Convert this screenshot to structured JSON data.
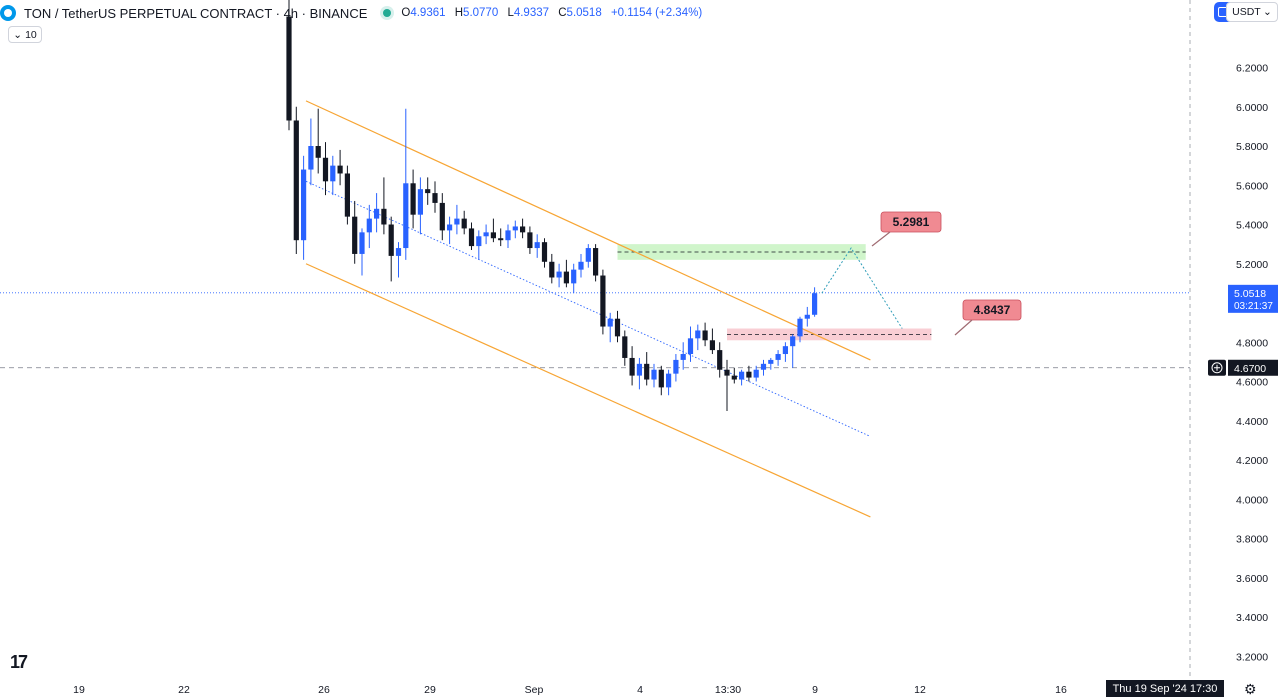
{
  "header": {
    "symbol_title": "TON / TetherUS PERPETUAL CONTRACT · 4h · BINANCE",
    "open_label": "O",
    "open": "4.9361",
    "high_label": "H",
    "high": "5.0770",
    "low_label": "L",
    "low": "4.9337",
    "close_label": "C",
    "close": "5.0518",
    "change": "+0.1154 (+2.34%)",
    "volume_toggle": "10"
  },
  "currency_button": "USDT",
  "time_badge": "Thu 19 Sep '24   17:30",
  "colors": {
    "up": "#2962ff",
    "down": "#131722",
    "channel": "#f7a534",
    "midline": "#2962ff",
    "target_box": "#c8f3c2",
    "stop_box": "#f8c6cc",
    "label_bg": "#f08a92",
    "brand_tab": "#2962ff"
  },
  "icons": {
    "volume_chevron": "chevron-down-icon",
    "crosshair": "crosshair-plus-icon",
    "settings": "gear-icon",
    "logo": "tradingview-logo-icon"
  },
  "chart_data": {
    "type": "candlestick",
    "price_ticks": [
      "6.2000",
      "6.0000",
      "5.8000",
      "5.6000",
      "5.4000",
      "5.2000",
      "4.8000",
      "4.6000",
      "4.4000",
      "4.2000",
      "4.0000",
      "3.8000",
      "3.6000",
      "3.4000",
      "3.2000"
    ],
    "time_ticks": [
      "19",
      "22",
      "26",
      "29",
      "Sep",
      "4",
      "13:30",
      "9",
      "12",
      "16"
    ],
    "last_price": "5.0518",
    "countdown": "03:21:37",
    "crosshair_price": "4.6700",
    "target_label": "5.2981",
    "target_price": 5.2981,
    "stop_label": "4.8437",
    "stop_price": 4.8437,
    "candles": [
      [
        6.46,
        6.6,
        5.88,
        5.93
      ],
      [
        5.93,
        6.0,
        5.25,
        5.32
      ],
      [
        5.32,
        5.75,
        5.22,
        5.68
      ],
      [
        5.68,
        5.94,
        5.6,
        5.8
      ],
      [
        5.8,
        5.99,
        5.66,
        5.74
      ],
      [
        5.74,
        5.82,
        5.55,
        5.62
      ],
      [
        5.62,
        5.75,
        5.55,
        5.7
      ],
      [
        5.7,
        5.78,
        5.6,
        5.66
      ],
      [
        5.66,
        5.7,
        5.4,
        5.44
      ],
      [
        5.44,
        5.52,
        5.2,
        5.25
      ],
      [
        5.25,
        5.38,
        5.14,
        5.36
      ],
      [
        5.36,
        5.5,
        5.28,
        5.43
      ],
      [
        5.43,
        5.56,
        5.36,
        5.48
      ],
      [
        5.48,
        5.64,
        5.35,
        5.4
      ],
      [
        5.4,
        5.44,
        5.11,
        5.24
      ],
      [
        5.24,
        5.31,
        5.13,
        5.28
      ],
      [
        5.28,
        5.99,
        5.22,
        5.61
      ],
      [
        5.61,
        5.68,
        5.38,
        5.45
      ],
      [
        5.45,
        5.64,
        5.35,
        5.58
      ],
      [
        5.58,
        5.64,
        5.5,
        5.56
      ],
      [
        5.56,
        5.62,
        5.46,
        5.51
      ],
      [
        5.51,
        5.56,
        5.32,
        5.37
      ],
      [
        5.37,
        5.44,
        5.3,
        5.4
      ],
      [
        5.4,
        5.5,
        5.35,
        5.43
      ],
      [
        5.43,
        5.47,
        5.35,
        5.38
      ],
      [
        5.38,
        5.41,
        5.27,
        5.29
      ],
      [
        5.29,
        5.37,
        5.22,
        5.34
      ],
      [
        5.34,
        5.4,
        5.3,
        5.36
      ],
      [
        5.36,
        5.43,
        5.31,
        5.33
      ],
      [
        5.33,
        5.38,
        5.29,
        5.32
      ],
      [
        5.32,
        5.4,
        5.28,
        5.37
      ],
      [
        5.37,
        5.42,
        5.33,
        5.39
      ],
      [
        5.39,
        5.43,
        5.33,
        5.36
      ],
      [
        5.36,
        5.39,
        5.25,
        5.28
      ],
      [
        5.28,
        5.35,
        5.23,
        5.31
      ],
      [
        5.31,
        5.33,
        5.18,
        5.21
      ],
      [
        5.21,
        5.25,
        5.1,
        5.13
      ],
      [
        5.13,
        5.2,
        5.08,
        5.16
      ],
      [
        5.16,
        5.22,
        5.08,
        5.1
      ],
      [
        5.1,
        5.2,
        5.05,
        5.17
      ],
      [
        5.17,
        5.25,
        5.13,
        5.21
      ],
      [
        5.21,
        5.3,
        5.18,
        5.28
      ],
      [
        5.28,
        5.3,
        5.11,
        5.14
      ],
      [
        5.14,
        5.17,
        4.84,
        4.88
      ],
      [
        4.88,
        4.95,
        4.8,
        4.92
      ],
      [
        4.92,
        4.96,
        4.8,
        4.83
      ],
      [
        4.83,
        4.86,
        4.68,
        4.72
      ],
      [
        4.72,
        4.78,
        4.58,
        4.63
      ],
      [
        4.63,
        4.72,
        4.56,
        4.69
      ],
      [
        4.69,
        4.75,
        4.58,
        4.61
      ],
      [
        4.61,
        4.69,
        4.57,
        4.66
      ],
      [
        4.66,
        4.68,
        4.53,
        4.57
      ],
      [
        4.57,
        4.66,
        4.53,
        4.64
      ],
      [
        4.64,
        4.74,
        4.6,
        4.71
      ],
      [
        4.71,
        4.8,
        4.66,
        4.74
      ],
      [
        4.74,
        4.88,
        4.7,
        4.82
      ],
      [
        4.82,
        4.89,
        4.76,
        4.86
      ],
      [
        4.86,
        4.9,
        4.78,
        4.81
      ],
      [
        4.81,
        4.87,
        4.74,
        4.76
      ],
      [
        4.76,
        4.8,
        4.62,
        4.66
      ],
      [
        4.66,
        4.71,
        4.45,
        4.63
      ],
      [
        4.63,
        4.67,
        4.59,
        4.61
      ],
      [
        4.61,
        4.66,
        4.58,
        4.65
      ],
      [
        4.65,
        4.68,
        4.6,
        4.62
      ],
      [
        4.62,
        4.68,
        4.6,
        4.66
      ],
      [
        4.66,
        4.71,
        4.63,
        4.69
      ],
      [
        4.69,
        4.72,
        4.66,
        4.71
      ],
      [
        4.71,
        4.76,
        4.68,
        4.74
      ],
      [
        4.74,
        4.8,
        4.7,
        4.78
      ],
      [
        4.78,
        4.84,
        4.67,
        4.83
      ],
      [
        4.83,
        4.93,
        4.8,
        4.92
      ],
      [
        4.92,
        4.98,
        4.88,
        4.94
      ],
      [
        4.94,
        5.08,
        4.93,
        5.05
      ]
    ],
    "channel": {
      "upper": {
        "from": [
          0,
          6.03
        ],
        "to": [
          83,
          4.71
        ]
      },
      "lower": {
        "from": [
          0,
          5.2
        ],
        "to": [
          83,
          3.91
        ]
      },
      "mid": {
        "from": [
          0,
          5.62
        ],
        "to": [
          83,
          4.32
        ]
      }
    },
    "target_box": {
      "top": 5.3,
      "bottom": 5.22,
      "from": 45,
      "to": 79
    },
    "stop_box": {
      "top": 4.87,
      "bottom": 4.81,
      "from": 60,
      "to": 88
    },
    "projection": [
      [
        73,
        5.05
      ],
      [
        77,
        5.28
      ],
      [
        84,
        4.87
      ]
    ],
    "dotted_last_line": 5.0518,
    "dashed_crosshair": 4.67
  }
}
